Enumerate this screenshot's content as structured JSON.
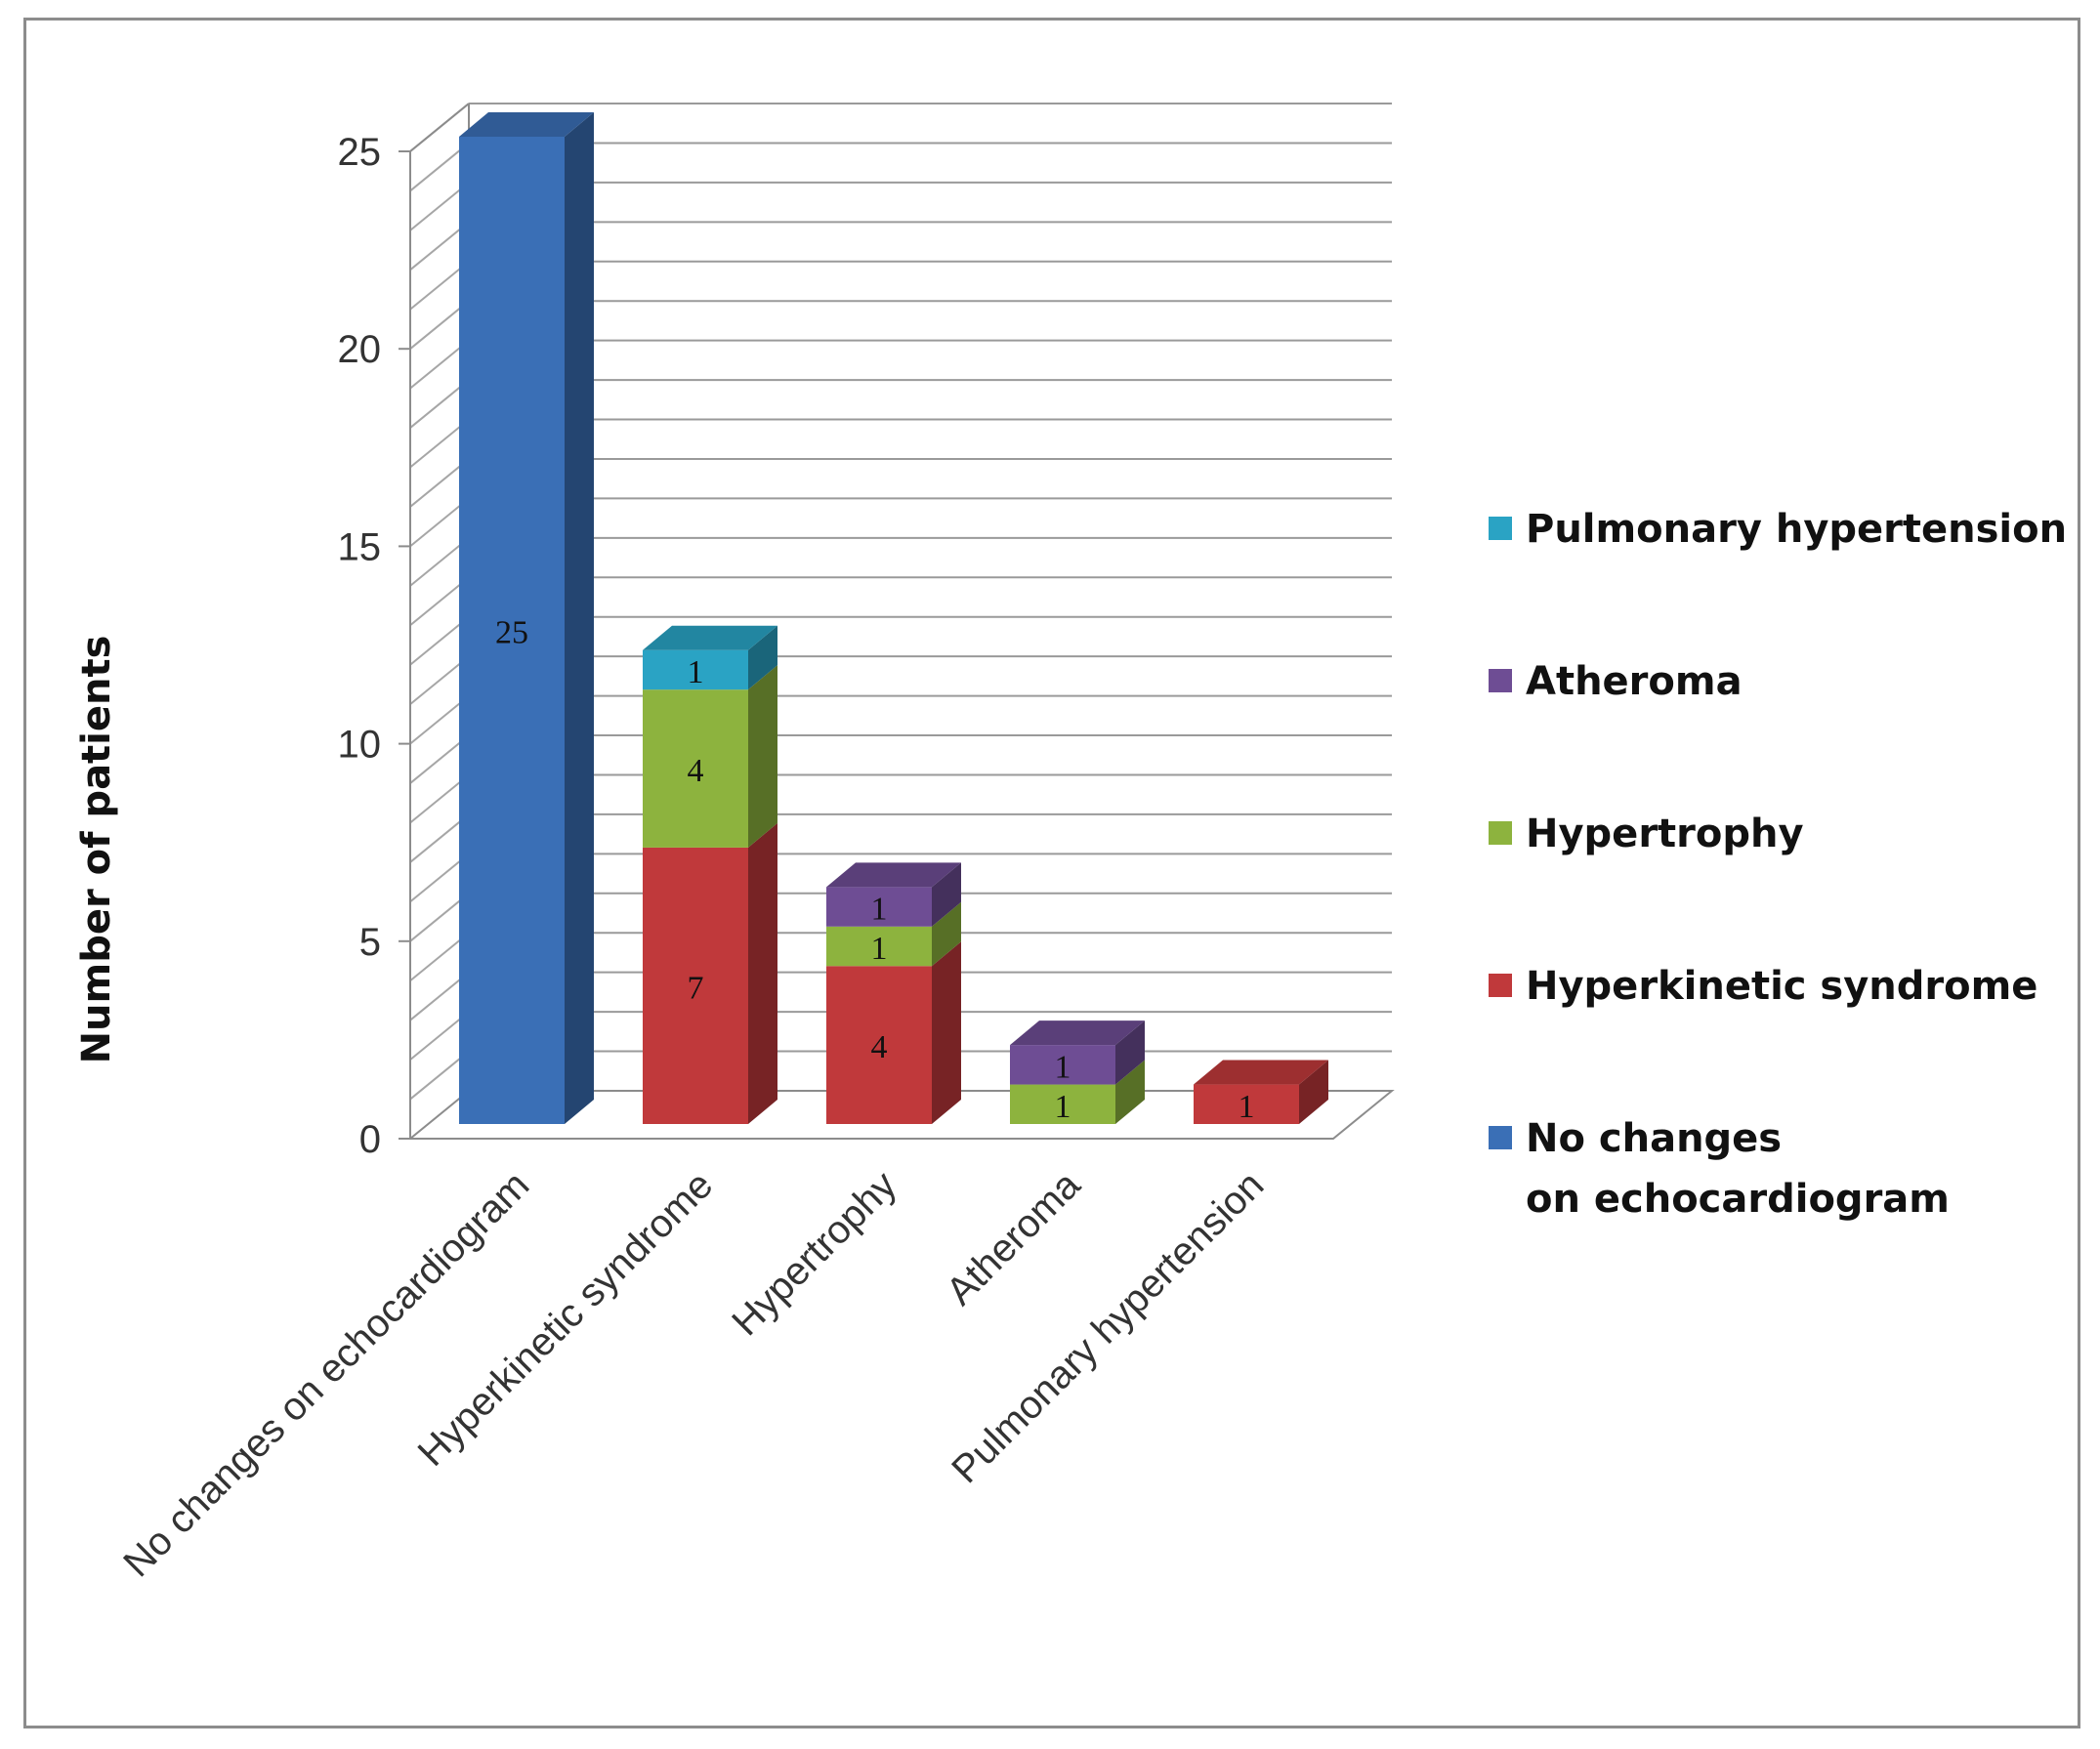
{
  "chart_data": {
    "type": "bar",
    "stacked": true,
    "three_d": true,
    "categories": [
      "No changes on echocardiogram",
      "Hyperkinetic syndrome",
      "Hypertrophy",
      "Atheroma",
      "Pulmonary hypertension"
    ],
    "series": [
      {
        "name": "No changes on echocardiogram",
        "color": "#3a6fb6",
        "values": [
          25,
          0,
          0,
          0,
          0
        ]
      },
      {
        "name": "Hyperkinetic syndrome",
        "color": "#c0393b",
        "values": [
          0,
          7,
          4,
          0,
          1
        ]
      },
      {
        "name": "Hypertrophy",
        "color": "#8db33e",
        "values": [
          0,
          4,
          1,
          1,
          0
        ]
      },
      {
        "name": "Atheroma",
        "color": "#6e4d94",
        "values": [
          0,
          0,
          1,
          1,
          0
        ]
      },
      {
        "name": "Pulmonary hypertension",
        "color": "#2aa3c4",
        "values": [
          0,
          1,
          0,
          0,
          0
        ]
      }
    ],
    "ylabel": "Number of patients",
    "xlabel": "",
    "ylim": [
      0,
      25
    ],
    "yticks": [
      0,
      5,
      10,
      15,
      20,
      25
    ],
    "grid": true,
    "legend_position": "right",
    "legend_order": [
      "Pulmonary hypertension",
      "Atheroma",
      "Hypertrophy",
      "Hyperkinetic syndrome",
      "No changes on echocardiogram"
    ]
  }
}
